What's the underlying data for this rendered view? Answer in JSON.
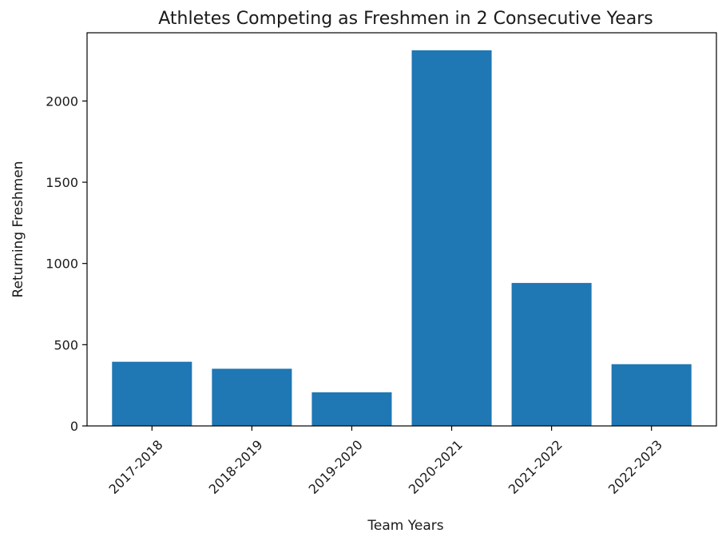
{
  "chart_data": {
    "type": "bar",
    "title": "Athletes Competing as Freshmen in 2 Consecutive Years",
    "xlabel": "Team Years",
    "ylabel": "Returning Freshmen",
    "categories": [
      "2017-2018",
      "2018-2019",
      "2019-2020",
      "2020-2021",
      "2021-2022",
      "2022-2023"
    ],
    "values": [
      395,
      352,
      207,
      2312,
      880,
      380
    ],
    "ylim": [
      0,
      2420
    ],
    "yticks": [
      0,
      500,
      1000,
      1500,
      2000
    ],
    "bar_color": "#1f77b4",
    "grid": false,
    "legend": "none",
    "xtick_rotation": 45
  }
}
